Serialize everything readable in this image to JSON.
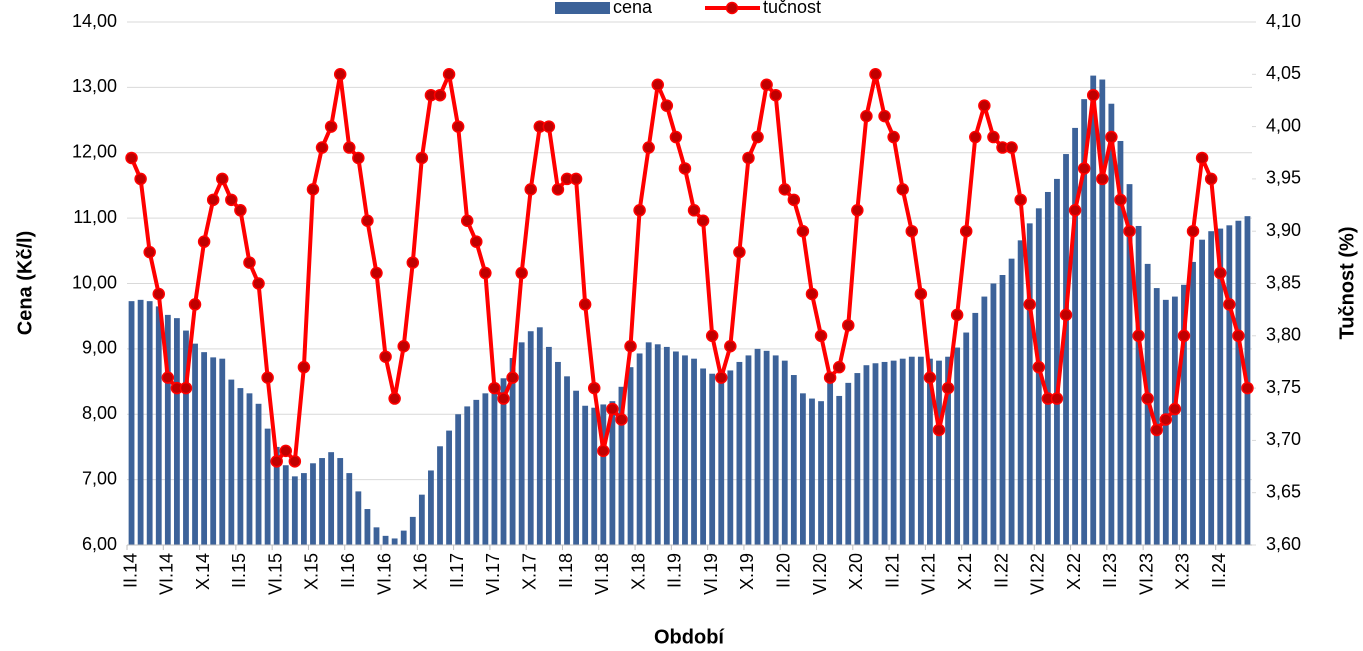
{
  "chart_data": {
    "type": "bar-line",
    "x_label": "Období",
    "y_label": "Cena (Kč/l)",
    "y2_label": "Tučnost (%)",
    "categories": [
      "II.14",
      null,
      null,
      null,
      "VI.14",
      null,
      null,
      null,
      "X.14",
      null,
      null,
      null,
      "II.15",
      null,
      null,
      null,
      "VI.15",
      null,
      null,
      null,
      "X.15",
      null,
      null,
      null,
      "II.16",
      null,
      null,
      null,
      "VI.16",
      null,
      null,
      null,
      "X.16",
      null,
      null,
      null,
      "II.17",
      null,
      null,
      null,
      "VI.17",
      null,
      null,
      null,
      "X.17",
      null,
      null,
      null,
      "II.18",
      null,
      null,
      null,
      "VI.18",
      null,
      null,
      null,
      "X.18",
      null,
      null,
      null,
      "II.19",
      null,
      null,
      null,
      "VI.19",
      null,
      null,
      null,
      "X.19",
      null,
      null,
      null,
      "II.20",
      null,
      null,
      null,
      "VI.20",
      null,
      null,
      null,
      "X.20",
      null,
      null,
      null,
      "II.21",
      null,
      null,
      null,
      "VI.21",
      null,
      null,
      null,
      "X.21",
      null,
      null,
      null,
      "II.22",
      null,
      null,
      null,
      "VI.22",
      null,
      null,
      null,
      "X.22",
      null,
      null,
      null,
      "II.23",
      null,
      null,
      null,
      "VI.23",
      null,
      null,
      null,
      "X.23",
      null,
      null,
      null,
      "II.24",
      null,
      null,
      null
    ],
    "series": [
      {
        "name": "cena",
        "type": "bar",
        "color": "#3c6299",
        "values": [
          9.73,
          9.75,
          9.73,
          9.65,
          9.52,
          9.47,
          9.28,
          9.08,
          8.95,
          8.87,
          8.85,
          8.53,
          8.4,
          8.32,
          8.16,
          7.78,
          7.5,
          7.22,
          7.05,
          7.1,
          7.25,
          7.33,
          7.42,
          7.33,
          7.1,
          6.82,
          6.55,
          6.27,
          6.14,
          6.1,
          6.22,
          6.43,
          6.77,
          7.14,
          7.51,
          7.75,
          8.0,
          8.12,
          8.22,
          8.32,
          8.4,
          8.55,
          8.86,
          9.1,
          9.27,
          9.33,
          9.03,
          8.8,
          8.58,
          8.36,
          8.13,
          8.1,
          8.15,
          8.2,
          8.42,
          8.72,
          8.93,
          9.1,
          9.07,
          9.03,
          8.96,
          8.9,
          8.85,
          8.7,
          8.62,
          8.6,
          8.67,
          8.8,
          8.9,
          9.0,
          8.97,
          8.9,
          8.82,
          8.6,
          8.32,
          8.24,
          8.2,
          8.55,
          8.28,
          8.48,
          8.63,
          8.75,
          8.78,
          8.8,
          8.82,
          8.85,
          8.88,
          8.88,
          8.85,
          8.82,
          8.88,
          9.02,
          9.25,
          9.55,
          9.8,
          10.0,
          10.13,
          10.38,
          10.66,
          10.92,
          11.15,
          11.4,
          11.6,
          11.98,
          12.38,
          12.82,
          13.18,
          13.12,
          12.75,
          12.18,
          11.52,
          10.88,
          10.3,
          9.93,
          9.75,
          9.8,
          9.98,
          10.33,
          10.67,
          10.8,
          10.84,
          10.89,
          10.96,
          11.03
        ]
      },
      {
        "name": "tučnost",
        "type": "line",
        "axis": "y2",
        "color": "#ff0000",
        "marker_color": "#c00000",
        "values": [
          3.97,
          3.95,
          3.88,
          3.84,
          3.76,
          3.75,
          3.75,
          3.83,
          3.89,
          3.93,
          3.95,
          3.93,
          3.92,
          3.87,
          3.85,
          3.76,
          3.68,
          3.69,
          3.68,
          3.77,
          3.94,
          3.98,
          4.0,
          4.05,
          3.98,
          3.97,
          3.91,
          3.86,
          3.78,
          3.74,
          3.79,
          3.87,
          3.97,
          4.03,
          4.03,
          4.05,
          4.0,
          3.91,
          3.89,
          3.86,
          3.75,
          3.74,
          3.76,
          3.86,
          3.94,
          4.0,
          4.0,
          3.94,
          3.95,
          3.95,
          3.83,
          3.75,
          3.69,
          3.73,
          3.72,
          3.79,
          3.92,
          3.98,
          4.04,
          4.02,
          3.99,
          3.96,
          3.92,
          3.91,
          3.8,
          3.76,
          3.79,
          3.88,
          3.97,
          3.99,
          4.04,
          4.03,
          3.94,
          3.93,
          3.9,
          3.84,
          3.8,
          3.76,
          3.77,
          3.81,
          3.92,
          4.01,
          4.05,
          4.01,
          3.99,
          3.94,
          3.9,
          3.84,
          3.76,
          3.71,
          3.75,
          3.82,
          3.9,
          3.99,
          4.02,
          3.99,
          3.98,
          3.98,
          3.93,
          3.83,
          3.77,
          3.74,
          3.74,
          3.82,
          3.92,
          3.96,
          4.03,
          3.95,
          3.99,
          3.93,
          3.9,
          3.8,
          3.74,
          3.71,
          3.72,
          3.73,
          3.8,
          3.9,
          3.97,
          3.95,
          3.86,
          3.83,
          3.8,
          3.75
        ]
      }
    ],
    "ylim": [
      6,
      14
    ],
    "yticks": [
      {
        "value": 6,
        "label": "6,00"
      },
      {
        "value": 7,
        "label": "7,00"
      },
      {
        "value": 8,
        "label": "8,00"
      },
      {
        "value": 9,
        "label": "9,00"
      },
      {
        "value": 10,
        "label": "10,00"
      },
      {
        "value": 11,
        "label": "11,00"
      },
      {
        "value": 12,
        "label": "12,00"
      },
      {
        "value": 13,
        "label": "13,00"
      },
      {
        "value": 14,
        "label": "14,00"
      }
    ],
    "y2lim": [
      3.6,
      4.1
    ],
    "y2ticks": [
      {
        "value": 3.6,
        "label": "3,60"
      },
      {
        "value": 3.65,
        "label": "3,65"
      },
      {
        "value": 3.7,
        "label": "3,70"
      },
      {
        "value": 3.75,
        "label": "3,75"
      },
      {
        "value": 3.8,
        "label": "3,80"
      },
      {
        "value": 3.85,
        "label": "3,85"
      },
      {
        "value": 3.9,
        "label": "3,90"
      },
      {
        "value": 3.95,
        "label": "3,95"
      },
      {
        "value": 4.0,
        "label": "4,00"
      },
      {
        "value": 4.05,
        "label": "4,05"
      },
      {
        "value": 4.1,
        "label": "4,10"
      }
    ],
    "grid": true,
    "legend": "top"
  }
}
